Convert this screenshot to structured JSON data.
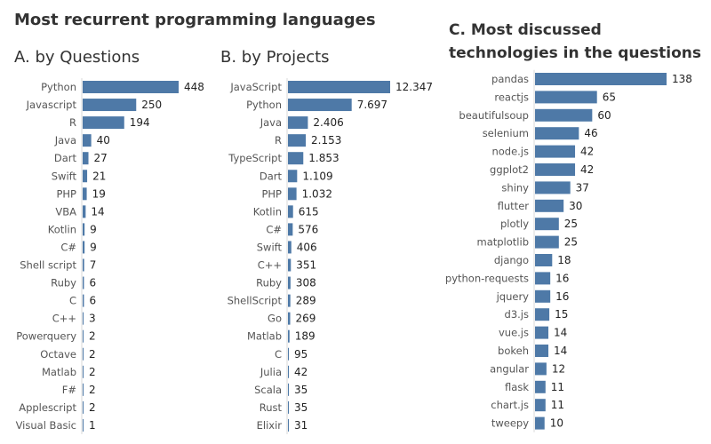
{
  "title": "Most recurrent programming languages",
  "chart_data": [
    {
      "type": "bar",
      "orientation": "horizontal",
      "title": "A. by Questions",
      "categories": [
        "Python",
        "Javascript",
        "R",
        "Java",
        "Dart",
        "Swift",
        "PHP",
        "VBA",
        "Kotlin",
        "C#",
        "Shell script",
        "Ruby",
        "C",
        "C++",
        "Powerquery",
        "Octave",
        "Matlab",
        "F#",
        "Applescript",
        "Visual Basic"
      ],
      "values": [
        448,
        250,
        194,
        40,
        27,
        21,
        19,
        14,
        9,
        9,
        7,
        6,
        6,
        3,
        2,
        2,
        2,
        2,
        2,
        1
      ],
      "value_labels": [
        "448",
        "250",
        "194",
        "40",
        "27",
        "21",
        "19",
        "14",
        "9",
        "9",
        "7",
        "6",
        "6",
        "3",
        "2",
        "2",
        "2",
        "2",
        "2",
        "1"
      ],
      "xlim": [
        0,
        448
      ],
      "bar_color": "#4e79a7"
    },
    {
      "type": "bar",
      "orientation": "horizontal",
      "title": "B. by Projects",
      "categories": [
        "JavaScript",
        "Python",
        "Java",
        "R",
        "TypeScript",
        "Dart",
        "PHP",
        "Kotlin",
        "C#",
        "Swift",
        "C++",
        "Ruby",
        "ShellScript",
        "Go",
        "Matlab",
        "C",
        "Julia",
        "Scala",
        "Rust",
        "Elixir"
      ],
      "values": [
        12347,
        7697,
        2406,
        2153,
        1853,
        1109,
        1032,
        615,
        576,
        406,
        351,
        308,
        289,
        269,
        189,
        95,
        42,
        35,
        35,
        31
      ],
      "value_labels": [
        "12.347",
        "7.697",
        "2.406",
        "2.153",
        "1.853",
        "1.109",
        "1.032",
        "615",
        "576",
        "406",
        "351",
        "308",
        "289",
        "269",
        "189",
        "95",
        "42",
        "35",
        "35",
        "31"
      ],
      "xlim": [
        0,
        12347
      ],
      "bar_color": "#4e79a7"
    },
    {
      "type": "bar",
      "orientation": "horizontal",
      "title": "C. Most discussed technologies in the questions",
      "categories": [
        "pandas",
        "reactjs",
        "beautifulsoup",
        "selenium",
        "node.js",
        "ggplot2",
        "shiny",
        "flutter",
        "plotly",
        "matplotlib",
        "django",
        "python-requests",
        "jquery",
        "d3.js",
        "vue.js",
        "bokeh",
        "angular",
        "flask",
        "chart.js",
        "tweepy"
      ],
      "values": [
        138,
        65,
        60,
        46,
        42,
        42,
        37,
        30,
        25,
        25,
        18,
        16,
        16,
        15,
        14,
        14,
        12,
        11,
        11,
        10
      ],
      "value_labels": [
        "138",
        "65",
        "60",
        "46",
        "42",
        "42",
        "37",
        "30",
        "25",
        "25",
        "18",
        "16",
        "16",
        "15",
        "14",
        "14",
        "12",
        "11",
        "11",
        "10"
      ],
      "xlim": [
        0,
        138
      ],
      "bar_color": "#4e79a7"
    }
  ]
}
